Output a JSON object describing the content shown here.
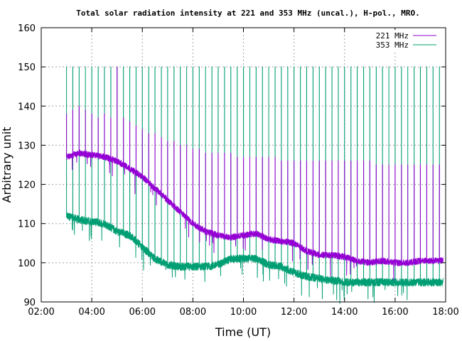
{
  "chart_data": {
    "type": "line",
    "title": "Total solar radiation intensity at 221 and 353 MHz (uncal.), H-pol., MRO.",
    "xlabel": "Time (UT)",
    "ylabel": "Arbitrary unit",
    "x_unit": "hours UT",
    "xlim": [
      2,
      18
    ],
    "ylim": [
      90,
      160
    ],
    "x_ticks": [
      "02:00",
      "04:00",
      "06:00",
      "08:00",
      "10:00",
      "12:00",
      "14:00",
      "16:00",
      "18:00"
    ],
    "y_ticks": [
      "90",
      "100",
      "110",
      "120",
      "130",
      "140",
      "150",
      "160"
    ],
    "grid": true,
    "legend_position": "top-right",
    "calibration_spikes": {
      "interval_minutes": 15,
      "start": "03:00",
      "end": "17:45",
      "spike_221_top": [
        138,
        139,
        140,
        139,
        138,
        137,
        138,
        137,
        150,
        137,
        136,
        135,
        134,
        133,
        133,
        132,
        131,
        131,
        130,
        130,
        129,
        129,
        128,
        128,
        128,
        128,
        128,
        127,
        127,
        127,
        127,
        127,
        127,
        127,
        126,
        126,
        126,
        126,
        126,
        126,
        126,
        126,
        126,
        126,
        126,
        126,
        126,
        126,
        126,
        125,
        125,
        125,
        125,
        125,
        125,
        125,
        125,
        125,
        125,
        125
      ],
      "spike_353_top": 150
    },
    "series": [
      {
        "name": "221 MHz",
        "color": "#9400d3",
        "points": [
          [
            3.0,
            127.0
          ],
          [
            3.5,
            128.0
          ],
          [
            4.0,
            127.5
          ],
          [
            4.5,
            127.0
          ],
          [
            5.0,
            126.0
          ],
          [
            5.5,
            124.0
          ],
          [
            6.0,
            122.0
          ],
          [
            6.5,
            119.0
          ],
          [
            7.0,
            116.0
          ],
          [
            7.5,
            113.0
          ],
          [
            8.0,
            110.0
          ],
          [
            8.5,
            108.0
          ],
          [
            9.0,
            107.0
          ],
          [
            9.5,
            106.5
          ],
          [
            10.0,
            107.0
          ],
          [
            10.5,
            107.5
          ],
          [
            11.0,
            106.0
          ],
          [
            11.5,
            105.5
          ],
          [
            12.0,
            105.0
          ],
          [
            12.5,
            103.0
          ],
          [
            13.0,
            102.0
          ],
          [
            13.5,
            102.0
          ],
          [
            14.0,
            101.5
          ],
          [
            14.5,
            100.5
          ],
          [
            15.0,
            100.0
          ],
          [
            15.5,
            100.5
          ],
          [
            16.0,
            100.0
          ],
          [
            16.5,
            100.0
          ],
          [
            17.0,
            100.5
          ],
          [
            17.5,
            100.5
          ],
          [
            17.9,
            100.5
          ]
        ]
      },
      {
        "name": "353 MHz",
        "color": "#009e73",
        "points": [
          [
            3.0,
            112.0
          ],
          [
            3.5,
            111.0
          ],
          [
            4.0,
            110.5
          ],
          [
            4.5,
            110.0
          ],
          [
            5.0,
            108.0
          ],
          [
            5.5,
            107.0
          ],
          [
            6.0,
            104.0
          ],
          [
            6.5,
            101.0
          ],
          [
            7.0,
            99.5
          ],
          [
            7.5,
            99.0
          ],
          [
            8.0,
            99.0
          ],
          [
            8.5,
            99.0
          ],
          [
            9.0,
            99.5
          ],
          [
            9.5,
            101.0
          ],
          [
            10.0,
            101.0
          ],
          [
            10.5,
            101.0
          ],
          [
            11.0,
            99.5
          ],
          [
            11.5,
            99.0
          ],
          [
            12.0,
            97.5
          ],
          [
            12.5,
            96.5
          ],
          [
            13.0,
            96.0
          ],
          [
            13.5,
            95.5
          ],
          [
            14.0,
            95.0
          ],
          [
            14.5,
            95.0
          ],
          [
            15.0,
            95.0
          ],
          [
            15.5,
            95.0
          ],
          [
            16.0,
            95.0
          ],
          [
            16.5,
            95.0
          ],
          [
            17.0,
            95.0
          ],
          [
            17.5,
            95.0
          ],
          [
            17.9,
            95.0
          ]
        ]
      }
    ]
  }
}
